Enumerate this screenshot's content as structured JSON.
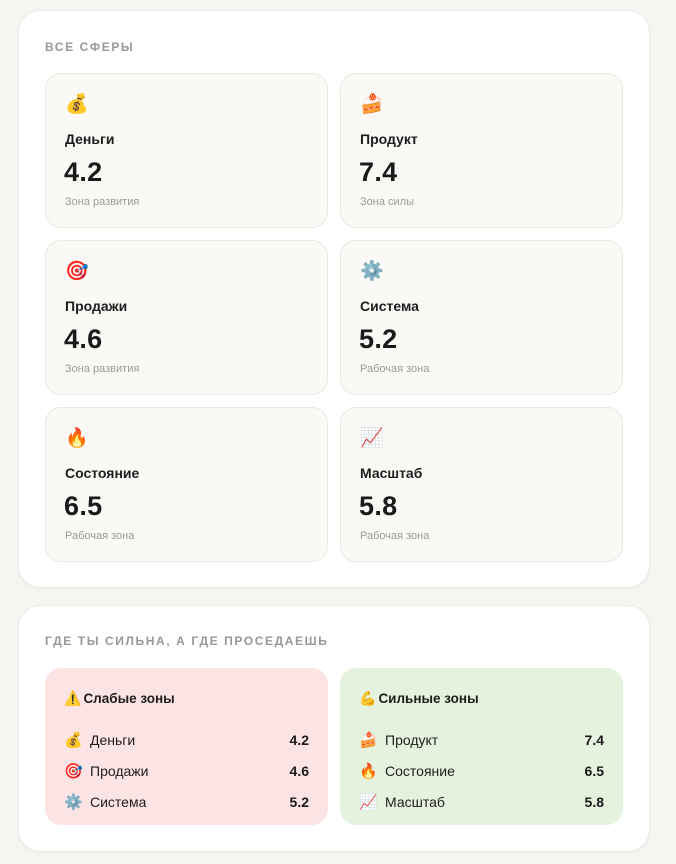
{
  "spheres_section": {
    "title": "ВСЕ СФЕРЫ",
    "cards": [
      {
        "emoji": "💰",
        "icon": "money-bag-icon",
        "name": "Деньги",
        "score": "4.2",
        "zone": "Зона развития"
      },
      {
        "emoji": "🍰",
        "icon": "cake-icon",
        "name": "Продукт",
        "score": "7.4",
        "zone": "Зона силы"
      },
      {
        "emoji": "🎯",
        "icon": "target-icon",
        "name": "Продажи",
        "score": "4.6",
        "zone": "Зона развития"
      },
      {
        "emoji": "⚙️",
        "icon": "gear-icon",
        "name": "Система",
        "score": "5.2",
        "zone": "Рабочая зона"
      },
      {
        "emoji": "🔥",
        "icon": "fire-icon",
        "name": "Состояние",
        "score": "6.5",
        "zone": "Рабочая зона"
      },
      {
        "emoji": "📈",
        "icon": "chart-increasing-icon",
        "name": "Масштаб",
        "score": "5.8",
        "zone": "Рабочая зона"
      }
    ]
  },
  "zones_section": {
    "title": "ГДЕ ТЫ СИЛЬНА, А ГДЕ ПРОСЕДАЕШЬ",
    "weak": {
      "emoji": "⚠️",
      "icon": "warning-icon",
      "title": "Слабые зоны",
      "bg_color": "#fde4e4",
      "items": [
        {
          "emoji": "💰",
          "icon": "money-bag-icon",
          "label": "Деньги",
          "value": "4.2"
        },
        {
          "emoji": "🎯",
          "icon": "target-icon",
          "label": "Продажи",
          "value": "4.6"
        },
        {
          "emoji": "⚙️",
          "icon": "gear-icon",
          "label": "Система",
          "value": "5.2"
        }
      ]
    },
    "strong": {
      "emoji": "💪",
      "icon": "flexed-biceps-icon",
      "title": "Сильные зоны",
      "bg_color": "#e5f3de",
      "items": [
        {
          "emoji": "🍰",
          "icon": "cake-icon",
          "label": "Продукт",
          "value": "7.4"
        },
        {
          "emoji": "🔥",
          "icon": "fire-icon",
          "label": "Состояние",
          "value": "6.5"
        },
        {
          "emoji": "📈",
          "icon": "chart-increasing-icon",
          "label": "Масштаб",
          "value": "5.8"
        }
      ]
    }
  }
}
